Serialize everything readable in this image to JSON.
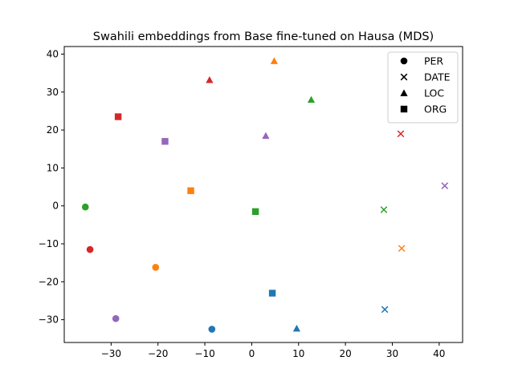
{
  "chart_data": {
    "type": "scatter",
    "title": "Swahili embeddings from Base fine-tuned on Hausa (MDS)",
    "xlabel": "",
    "ylabel": "",
    "xlim": [
      -40,
      45
    ],
    "ylim": [
      -36,
      42
    ],
    "xticks": [
      -30,
      -20,
      -10,
      0,
      10,
      20,
      30,
      40
    ],
    "yticks": [
      -30,
      -20,
      -10,
      0,
      10,
      20,
      30,
      40
    ],
    "xtick_labels": [
      "−30",
      "−20",
      "−10",
      "0",
      "10",
      "20",
      "30",
      "40"
    ],
    "ytick_labels": [
      "−30",
      "−20",
      "−10",
      "0",
      "10",
      "20",
      "30",
      "40"
    ],
    "grid": false,
    "legend_position": "top-right",
    "legend": [
      {
        "label": "PER",
        "marker": "circle"
      },
      {
        "label": "DATE",
        "marker": "x"
      },
      {
        "label": "LOC",
        "marker": "triangle"
      },
      {
        "label": "ORG",
        "marker": "square"
      }
    ],
    "points": [
      {
        "x": -35.5,
        "y": -0.3,
        "marker": "circle",
        "color": "#2ca02c"
      },
      {
        "x": -34.5,
        "y": -11.5,
        "marker": "circle",
        "color": "#d62728"
      },
      {
        "x": -20.5,
        "y": -16.2,
        "marker": "circle",
        "color": "#ff7f0e"
      },
      {
        "x": -29.0,
        "y": -29.7,
        "marker": "circle",
        "color": "#9467bd"
      },
      {
        "x": -8.5,
        "y": -32.5,
        "marker": "circle",
        "color": "#1f77b4"
      },
      {
        "x": 31.8,
        "y": 19.0,
        "marker": "x",
        "color": "#d62728"
      },
      {
        "x": 41.2,
        "y": 5.3,
        "marker": "x",
        "color": "#9467bd"
      },
      {
        "x": 28.2,
        "y": -1.0,
        "marker": "x",
        "color": "#2ca02c"
      },
      {
        "x": 32.0,
        "y": -11.2,
        "marker": "x",
        "color": "#ff7f0e"
      },
      {
        "x": 28.4,
        "y": -27.3,
        "marker": "x",
        "color": "#1f77b4"
      },
      {
        "x": 4.8,
        "y": 38.2,
        "marker": "triangle",
        "color": "#ff7f0e"
      },
      {
        "x": -9.0,
        "y": 33.2,
        "marker": "triangle",
        "color": "#d62728"
      },
      {
        "x": 12.7,
        "y": 28.0,
        "marker": "triangle",
        "color": "#2ca02c"
      },
      {
        "x": 3.0,
        "y": 18.5,
        "marker": "triangle",
        "color": "#9467bd"
      },
      {
        "x": 9.6,
        "y": -32.3,
        "marker": "triangle",
        "color": "#1f77b4"
      },
      {
        "x": -28.5,
        "y": 23.5,
        "marker": "square",
        "color": "#d62728"
      },
      {
        "x": -18.5,
        "y": 17.0,
        "marker": "square",
        "color": "#9467bd"
      },
      {
        "x": -13.0,
        "y": 4.0,
        "marker": "square",
        "color": "#ff7f0e"
      },
      {
        "x": 0.8,
        "y": -1.5,
        "marker": "square",
        "color": "#2ca02c"
      },
      {
        "x": 4.4,
        "y": -23.0,
        "marker": "square",
        "color": "#1f77b4"
      }
    ]
  }
}
